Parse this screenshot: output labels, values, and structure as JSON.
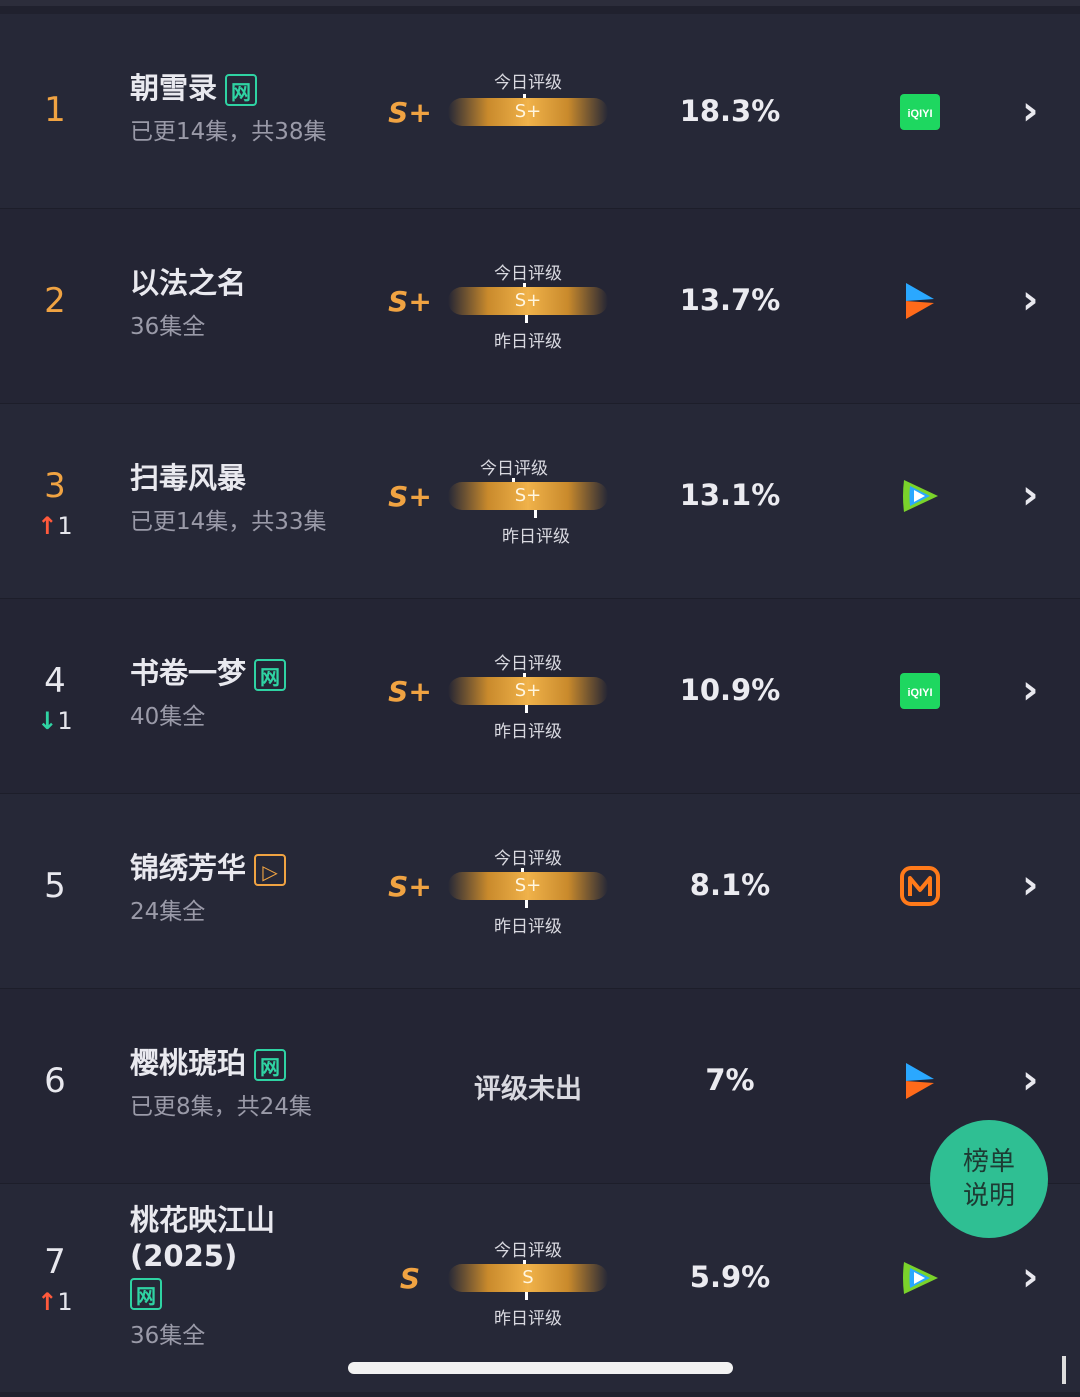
{
  "rows": [
    {
      "rank": "1",
      "title": "朝雪录",
      "badge": "网",
      "subtitle": "已更14集，共38集",
      "grade": "S+",
      "today_label": "今日评级",
      "bar_label": "S+",
      "yesterday_label": "",
      "percent": "18.3%",
      "platform": "iqiyi-icon",
      "platform_text": "iQIYI"
    },
    {
      "rank": "2",
      "title": "以法之名",
      "badge": "",
      "subtitle": "36集全",
      "grade": "S+",
      "today_label": "今日评级",
      "bar_label": "S+",
      "yesterday_label": "昨日评级",
      "percent": "13.7%",
      "platform": "youku-icon"
    },
    {
      "rank": "3",
      "change": "1",
      "change_dir": "up",
      "title": "扫毒风暴",
      "badge": "",
      "subtitle": "已更14集，共33集",
      "grade": "S+",
      "today_label": "今日评级",
      "bar_label": "S+",
      "yesterday_label": "昨日评级",
      "percent": "13.1%",
      "platform": "tencent-video-icon"
    },
    {
      "rank": "4",
      "change": "1",
      "change_dir": "down",
      "title": "书卷一梦",
      "badge": "网",
      "subtitle": "40集全",
      "grade": "S+",
      "today_label": "今日评级",
      "bar_label": "S+",
      "yesterday_label": "昨日评级",
      "percent": "10.9%",
      "platform": "iqiyi-icon",
      "platform_text": "iQIYI"
    },
    {
      "rank": "5",
      "title": "锦绣芳华",
      "badge": "▷",
      "subtitle": "24集全",
      "grade": "S+",
      "today_label": "今日评级",
      "bar_label": "S+",
      "yesterday_label": "昨日评级",
      "percent": "8.1%",
      "platform": "mango-tv-icon"
    },
    {
      "rank": "6",
      "title": "樱桃琥珀",
      "badge": "网",
      "subtitle": "已更8集，共24集",
      "grade": "",
      "no_rating": "评级未出",
      "percent": "7%",
      "platform": "youku-icon"
    },
    {
      "rank": "7",
      "change": "1",
      "change_dir": "up",
      "title": "桃花映江山(2025)",
      "badge": "网",
      "subtitle": "36集全",
      "grade": "S",
      "today_label": "今日评级",
      "bar_label": "S",
      "yesterday_label": "昨日评级",
      "percent": "5.9%",
      "platform": "tencent-video-icon"
    }
  ],
  "float_button": {
    "line1": "榜单",
    "line2": "说明"
  },
  "colors": {
    "background": "#20212e",
    "gold": "#f0a342",
    "green": "#2fd3a3",
    "up": "#ff5a3c"
  }
}
